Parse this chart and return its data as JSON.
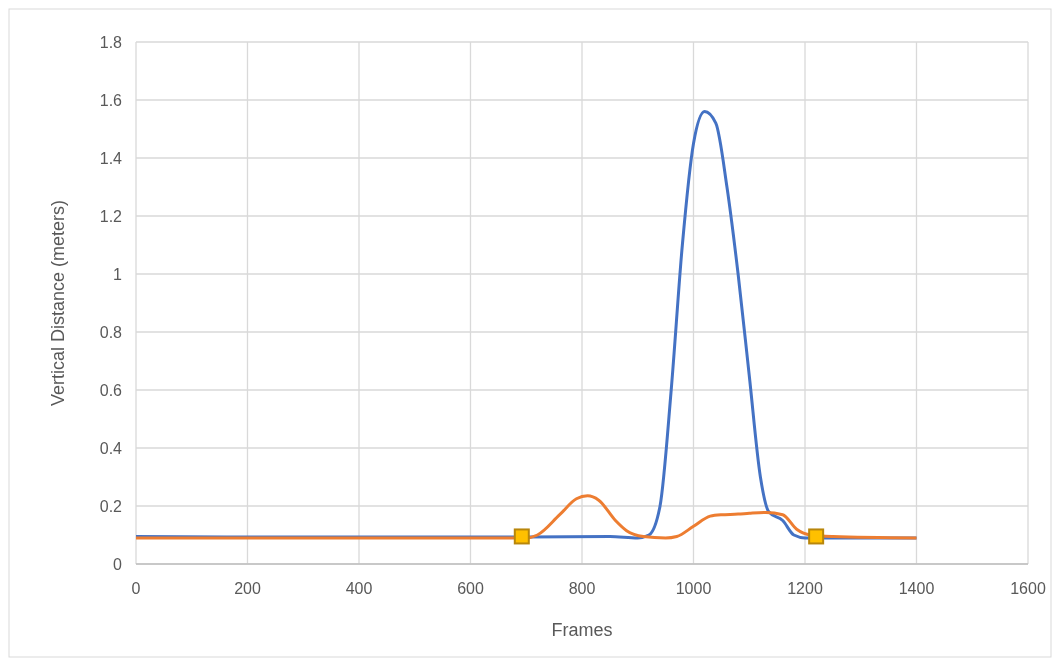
{
  "chart_data": {
    "type": "line",
    "xlabel": "Frames",
    "ylabel": "Vertical Distance (meters)",
    "xlim": [
      0,
      1600
    ],
    "xticks": [
      0,
      200,
      400,
      600,
      800,
      1000,
      1200,
      1400,
      1600
    ],
    "ylim": [
      0,
      1.8
    ],
    "yticks": [
      0,
      0.2,
      0.4,
      0.6,
      0.8,
      1,
      1.2,
      1.4,
      1.6,
      1.8
    ],
    "grid": true,
    "line_style": "solid",
    "marker": "none",
    "series": [
      {
        "color": "#4472c4",
        "x": [
          0,
          200,
          400,
          700,
          850,
          900,
          920,
          940,
          960,
          980,
          1000,
          1020,
          1040,
          1060,
          1080,
          1100,
          1120,
          1135,
          1160,
          1180,
          1200,
          1300,
          1400
        ],
        "values": [
          0.095,
          0.093,
          0.093,
          0.093,
          0.095,
          0.09,
          0.1,
          0.2,
          0.6,
          1.1,
          1.45,
          1.56,
          1.52,
          1.3,
          1.0,
          0.65,
          0.3,
          0.18,
          0.15,
          0.1,
          0.09,
          0.09,
          0.09
        ]
      },
      {
        "color": "#ed7d31",
        "x": [
          0,
          200,
          400,
          700,
          720,
          760,
          790,
          810,
          830,
          860,
          880,
          910,
          950,
          970,
          1000,
          1030,
          1050,
          1080,
          1100,
          1130,
          1160,
          1185,
          1210,
          1250,
          1400
        ],
        "values": [
          0.09,
          0.09,
          0.09,
          0.09,
          0.1,
          0.17,
          0.225,
          0.235,
          0.22,
          0.15,
          0.115,
          0.095,
          0.09,
          0.095,
          0.13,
          0.165,
          0.17,
          0.172,
          0.175,
          0.178,
          0.17,
          0.12,
          0.1,
          0.095,
          0.09
        ]
      },
      {
        "type": "scatter",
        "marker": "square",
        "color": "#ffc000",
        "x": [
          692,
          1220
        ],
        "values": [
          0.095,
          0.095
        ]
      }
    ]
  }
}
